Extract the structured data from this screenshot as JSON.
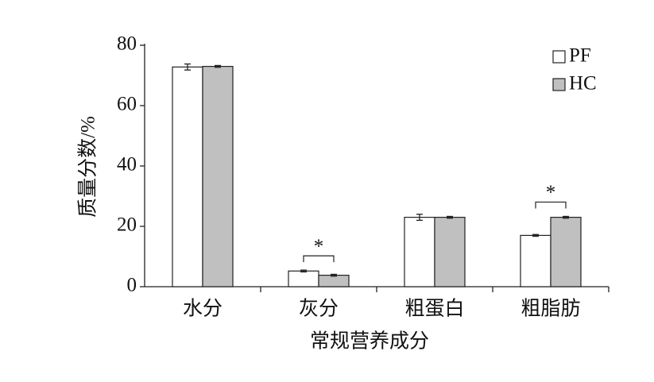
{
  "chart_data": {
    "type": "bar",
    "x_label": "常规营养成分",
    "y_label": "质量分数/%",
    "categories": [
      "水分",
      "灰分",
      "粗蛋白",
      "粗脂肪"
    ],
    "series": [
      {
        "name": "PF",
        "color": "#ffffff",
        "values": [
          72.8,
          5.2,
          23.0,
          17.0
        ],
        "errors": [
          1.0,
          0.3,
          1.0,
          0.3
        ]
      },
      {
        "name": "HC",
        "color": "#c0c0c0",
        "values": [
          73.0,
          3.8,
          23.0,
          23.0
        ],
        "errors": [
          0.3,
          0.3,
          0.3,
          0.3
        ]
      }
    ],
    "significance": [
      null,
      "*",
      null,
      "*"
    ],
    "ylim": [
      0,
      80
    ],
    "yticks": [
      0,
      20,
      40,
      60,
      80
    ],
    "legend": "upper-right",
    "grid": false
  }
}
